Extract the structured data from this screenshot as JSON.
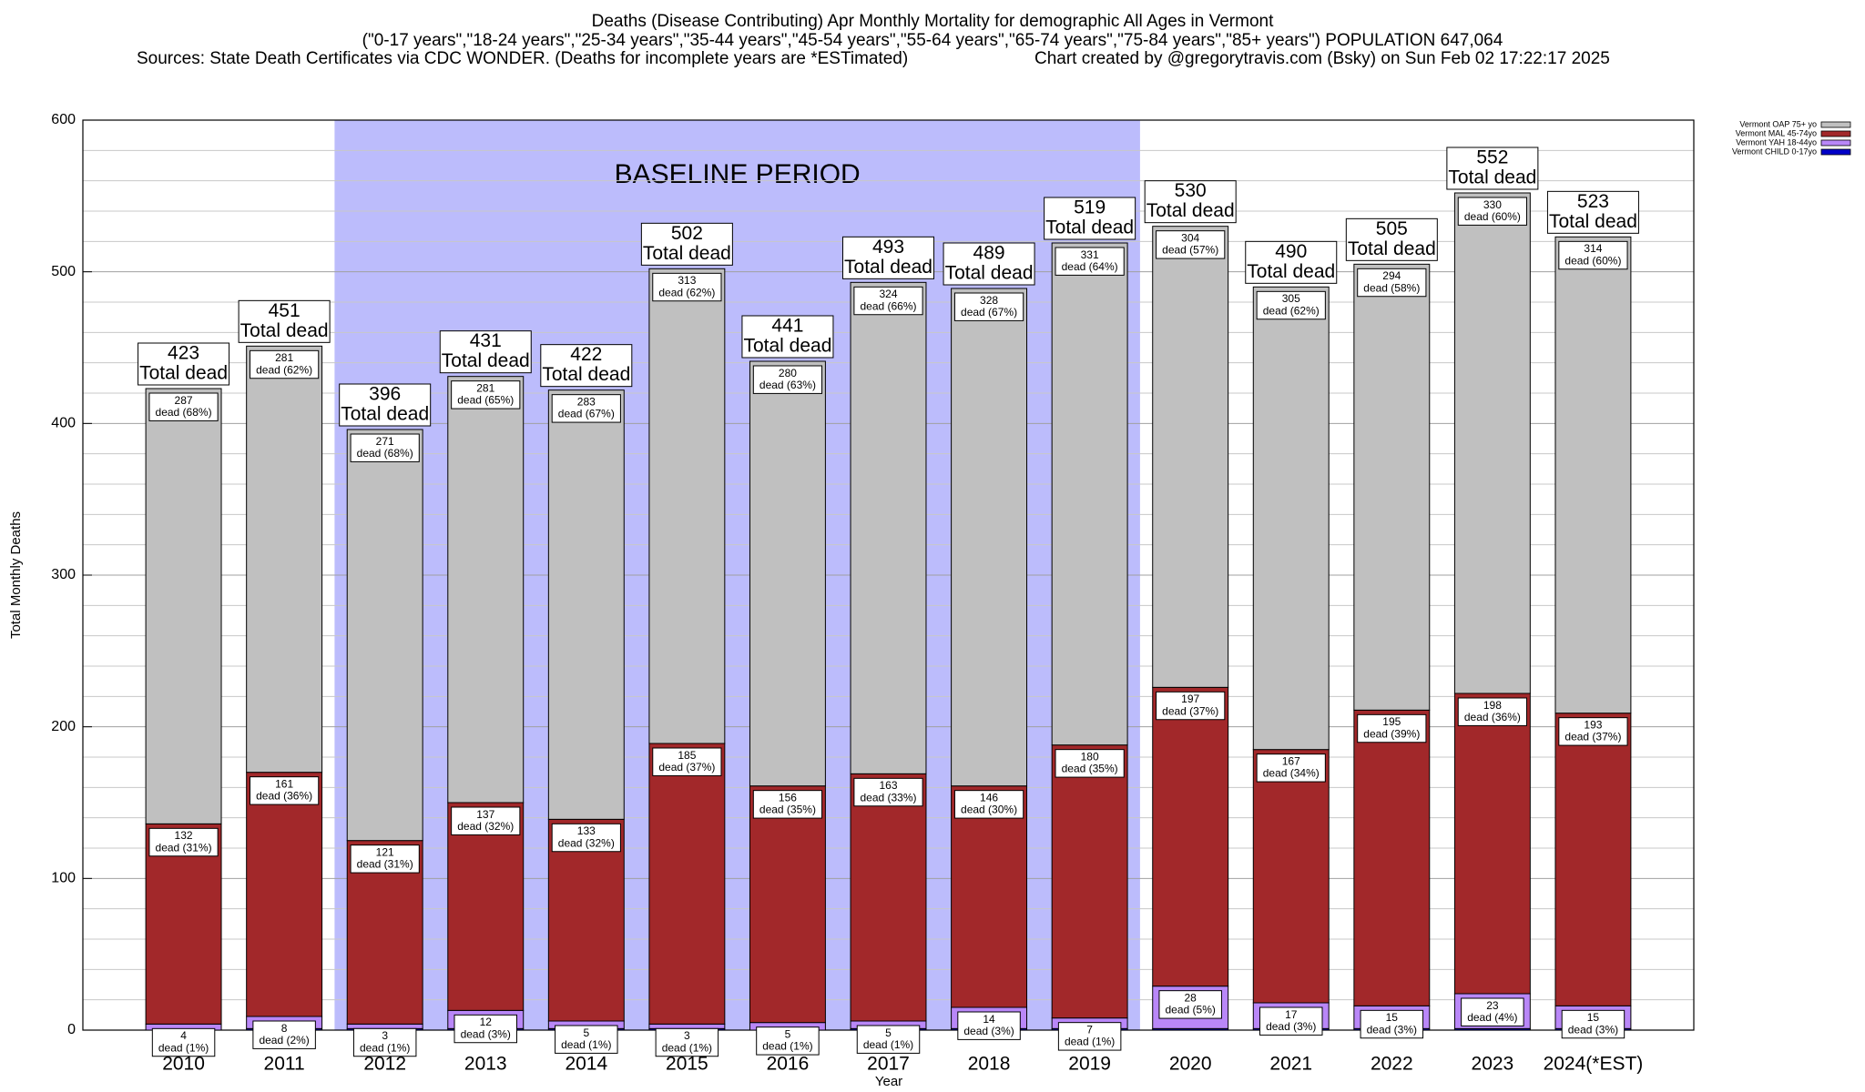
{
  "chart_data": {
    "type": "stacked-bar",
    "title": "Deaths (Disease Contributing) Apr Monthly Mortality for demographic All Ages in Vermont",
    "subtitle": "(\"0-17 years\",\"18-24 years\",\"25-34 years\",\"35-44 years\",\"45-54 years\",\"55-64 years\",\"65-74 years\",\"75-84 years\",\"85+ years\") POPULATION 647,064",
    "sources": "Sources: State Death Certificates via CDC WONDER. (Deaths for incomplete years are *ESTimated)",
    "credit": "Chart created by @gregorytravis.com (Bsky) on Sun Feb 02 17:22:17 2025",
    "y_label": "Total Monthly Deaths",
    "x_label": "Year",
    "annotation": "BASELINE PERIOD",
    "categories": [
      "2010",
      "2011",
      "2012",
      "2013",
      "2014",
      "2015",
      "2016",
      "2017",
      "2018",
      "2019",
      "2020",
      "2021",
      "2022",
      "2023",
      "2024(*EST)"
    ],
    "series": [
      {
        "name": "Vermont CHILD 0-17yo",
        "color": "#0000c8",
        "values": [
          0,
          1,
          1,
          1,
          1,
          1,
          0,
          1,
          1,
          1,
          1,
          1,
          1,
          1,
          1
        ]
      },
      {
        "name": "Vermont YAH 18-44yo",
        "color": "#b987f8",
        "values": [
          4,
          8,
          3,
          12,
          5,
          3,
          5,
          5,
          14,
          7,
          28,
          17,
          15,
          23,
          15
        ],
        "pct_labels": [
          "dead (1%)",
          "dead (2%)",
          "dead (1%)",
          "dead (3%)",
          "dead (1%)",
          "dead (1%)",
          "dead (1%)",
          "dead (1%)",
          "dead (3%)",
          "dead (1%)",
          "dead (5%)",
          "dead (3%)",
          "dead (3%)",
          "dead (4%)",
          "dead (3%)"
        ]
      },
      {
        "name": "Vermont MAL 45-74yo",
        "color": "#a2282a",
        "values": [
          132,
          161,
          121,
          137,
          133,
          185,
          156,
          163,
          146,
          180,
          197,
          167,
          195,
          198,
          193
        ],
        "pct_labels": [
          "dead (31%)",
          "dead (36%)",
          "dead (31%)",
          "dead (32%)",
          "dead (32%)",
          "dead (37%)",
          "dead (35%)",
          "dead (33%)",
          "dead (30%)",
          "dead (35%)",
          "dead (37%)",
          "dead (34%)",
          "dead (39%)",
          "dead (36%)",
          "dead (37%)"
        ]
      },
      {
        "name": "Vermont OAP 75+ yo",
        "color": "#c0c0c0",
        "values": [
          287,
          281,
          271,
          281,
          283,
          313,
          280,
          324,
          328,
          331,
          304,
          305,
          294,
          330,
          314
        ],
        "pct_labels": [
          "dead (68%)",
          "dead (62%)",
          "dead (68%)",
          "dead (65%)",
          "dead (67%)",
          "dead (62%)",
          "dead (63%)",
          "dead (66%)",
          "dead (67%)",
          "dead (64%)",
          "dead (57%)",
          "dead (62%)",
          "dead (58%)",
          "dead (60%)",
          "dead (60%)"
        ]
      }
    ],
    "totals": [
      423,
      451,
      396,
      431,
      422,
      502,
      441,
      493,
      489,
      519,
      530,
      490,
      505,
      552,
      523
    ],
    "total_label": "Total dead",
    "ylim": [
      0,
      600
    ],
    "yticks": [
      0,
      100,
      200,
      300,
      400,
      500,
      600
    ],
    "minor_yticks": [
      20,
      40,
      60,
      80,
      120,
      140,
      160,
      180,
      220,
      240,
      260,
      280,
      320,
      340,
      360,
      380,
      420,
      440,
      460,
      480,
      520,
      540,
      560,
      580
    ],
    "grid": true,
    "legend": "top-right"
  }
}
